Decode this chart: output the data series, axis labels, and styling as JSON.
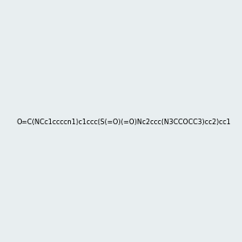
{
  "smiles": "O=C(NCc1ccccn1)c1ccc(S(=O)(=O)Nc2ccc(N3CCOCC3)cc2)cc1",
  "image_size": 300,
  "background_color": "#e8eef0",
  "title": ""
}
